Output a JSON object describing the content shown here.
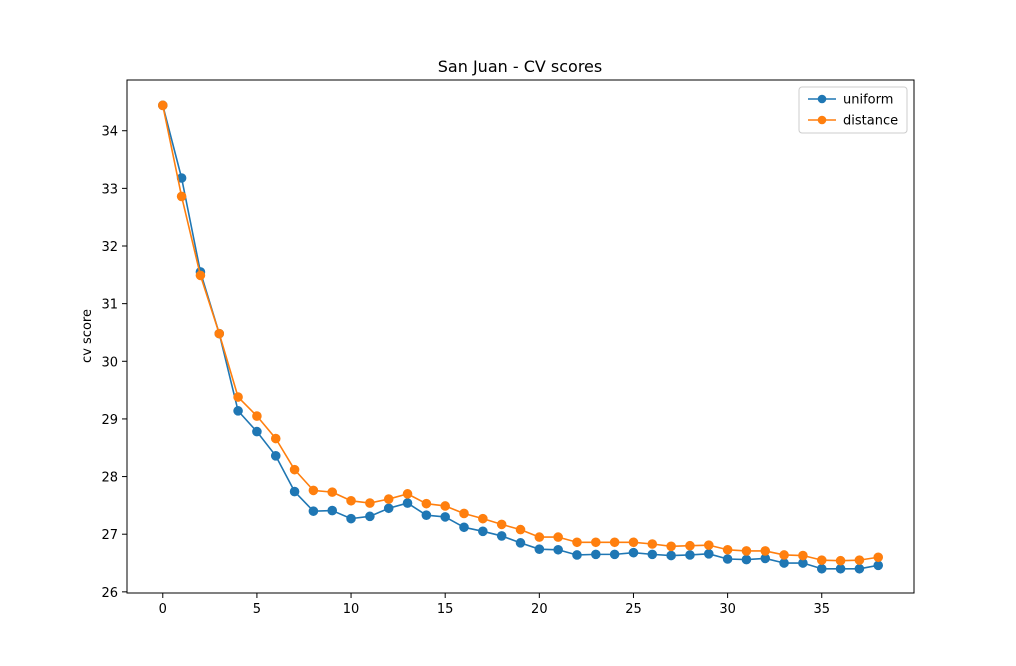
{
  "chart_data": {
    "type": "line",
    "title": "San Juan - CV scores",
    "xlabel": "",
    "ylabel": "cv score",
    "xlim": [
      -1.9,
      39.9
    ],
    "ylim": [
      25.98,
      34.88
    ],
    "xticks": [
      0,
      5,
      10,
      15,
      20,
      25,
      30,
      35
    ],
    "yticks": [
      26,
      27,
      28,
      29,
      30,
      31,
      32,
      33,
      34
    ],
    "grid": false,
    "legend_position": "top-right",
    "x": [
      0,
      1,
      2,
      3,
      4,
      5,
      6,
      7,
      8,
      9,
      10,
      11,
      12,
      13,
      14,
      15,
      16,
      17,
      18,
      19,
      20,
      21,
      22,
      23,
      24,
      25,
      26,
      27,
      28,
      29,
      30,
      31,
      32,
      33,
      34,
      35,
      36,
      37,
      38
    ],
    "series": [
      {
        "name": "uniform",
        "color": "#1f77b4",
        "values": [
          34.44,
          33.18,
          31.55,
          30.48,
          29.14,
          28.78,
          28.36,
          27.74,
          27.4,
          27.41,
          27.27,
          27.31,
          27.45,
          27.54,
          27.33,
          27.3,
          27.12,
          27.05,
          26.97,
          26.85,
          26.74,
          26.73,
          26.64,
          26.65,
          26.65,
          26.68,
          26.65,
          26.63,
          26.64,
          26.66,
          26.57,
          26.56,
          26.58,
          26.5,
          26.5,
          26.4,
          26.4,
          26.4,
          26.46
        ]
      },
      {
        "name": "distance",
        "color": "#ff7f0e",
        "values": [
          34.44,
          32.86,
          31.49,
          30.48,
          29.38,
          29.05,
          28.66,
          28.12,
          27.76,
          27.73,
          27.58,
          27.54,
          27.61,
          27.7,
          27.53,
          27.49,
          27.36,
          27.27,
          27.17,
          27.08,
          26.95,
          26.95,
          26.86,
          26.86,
          26.86,
          26.86,
          26.83,
          26.79,
          26.8,
          26.81,
          26.73,
          26.71,
          26.71,
          26.64,
          26.63,
          26.55,
          26.54,
          26.55,
          26.6
        ]
      }
    ]
  }
}
